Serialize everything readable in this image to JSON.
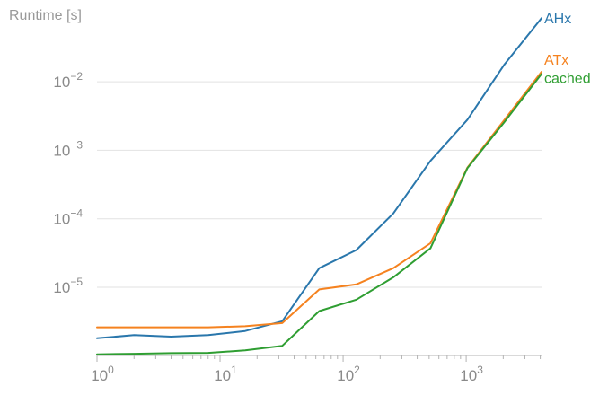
{
  "chart_data": {
    "type": "line",
    "ylabel": "Runtime [s]",
    "xlabel": "",
    "x_scale": "log",
    "y_scale": "log",
    "xlim": [
      1,
      4096
    ],
    "ylim": [
      1e-06,
      0.05
    ],
    "grid": "horizontal",
    "legend": "inline-right",
    "x_ticks": [
      {
        "base": "10",
        "exp": "0",
        "value": 1
      },
      {
        "base": "10",
        "exp": "1",
        "value": 10
      },
      {
        "base": "10",
        "exp": "2",
        "value": 100
      },
      {
        "base": "10",
        "exp": "3",
        "value": 1000
      }
    ],
    "y_ticks": [
      {
        "base": "10",
        "exp": "−5",
        "value": 1e-05
      },
      {
        "base": "10",
        "exp": "−4",
        "value": 0.0001
      },
      {
        "base": "10",
        "exp": "−3",
        "value": 0.001
      },
      {
        "base": "10",
        "exp": "−2",
        "value": 0.01
      }
    ],
    "x": [
      1,
      2,
      4,
      8,
      16,
      32,
      64,
      128,
      256,
      512,
      1024,
      2048,
      4096
    ],
    "series": [
      {
        "name": "AHx",
        "color": "#2a77ac",
        "values": [
          1.8e-06,
          2e-06,
          1.9e-06,
          2e-06,
          2.3e-06,
          3.2e-06,
          1.9e-05,
          3.5e-05,
          0.00012,
          0.0007,
          0.0028,
          0.018,
          0.085
        ]
      },
      {
        "name": "ATx",
        "color": "#f5821f",
        "values": [
          2.6e-06,
          2.6e-06,
          2.6e-06,
          2.6e-06,
          2.7e-06,
          3e-06,
          9.3e-06,
          1.1e-05,
          1.9e-05,
          4.4e-05,
          0.00056,
          0.0028,
          0.014
        ]
      },
      {
        "name": "cached",
        "color": "#2f9e32",
        "values": [
          1.05e-06,
          1.07e-06,
          1.09e-06,
          1.1e-06,
          1.2e-06,
          1.4e-06,
          4.5e-06,
          6.6e-06,
          1.4e-05,
          3.7e-05,
          0.00055,
          0.0026,
          0.013
        ]
      }
    ]
  }
}
